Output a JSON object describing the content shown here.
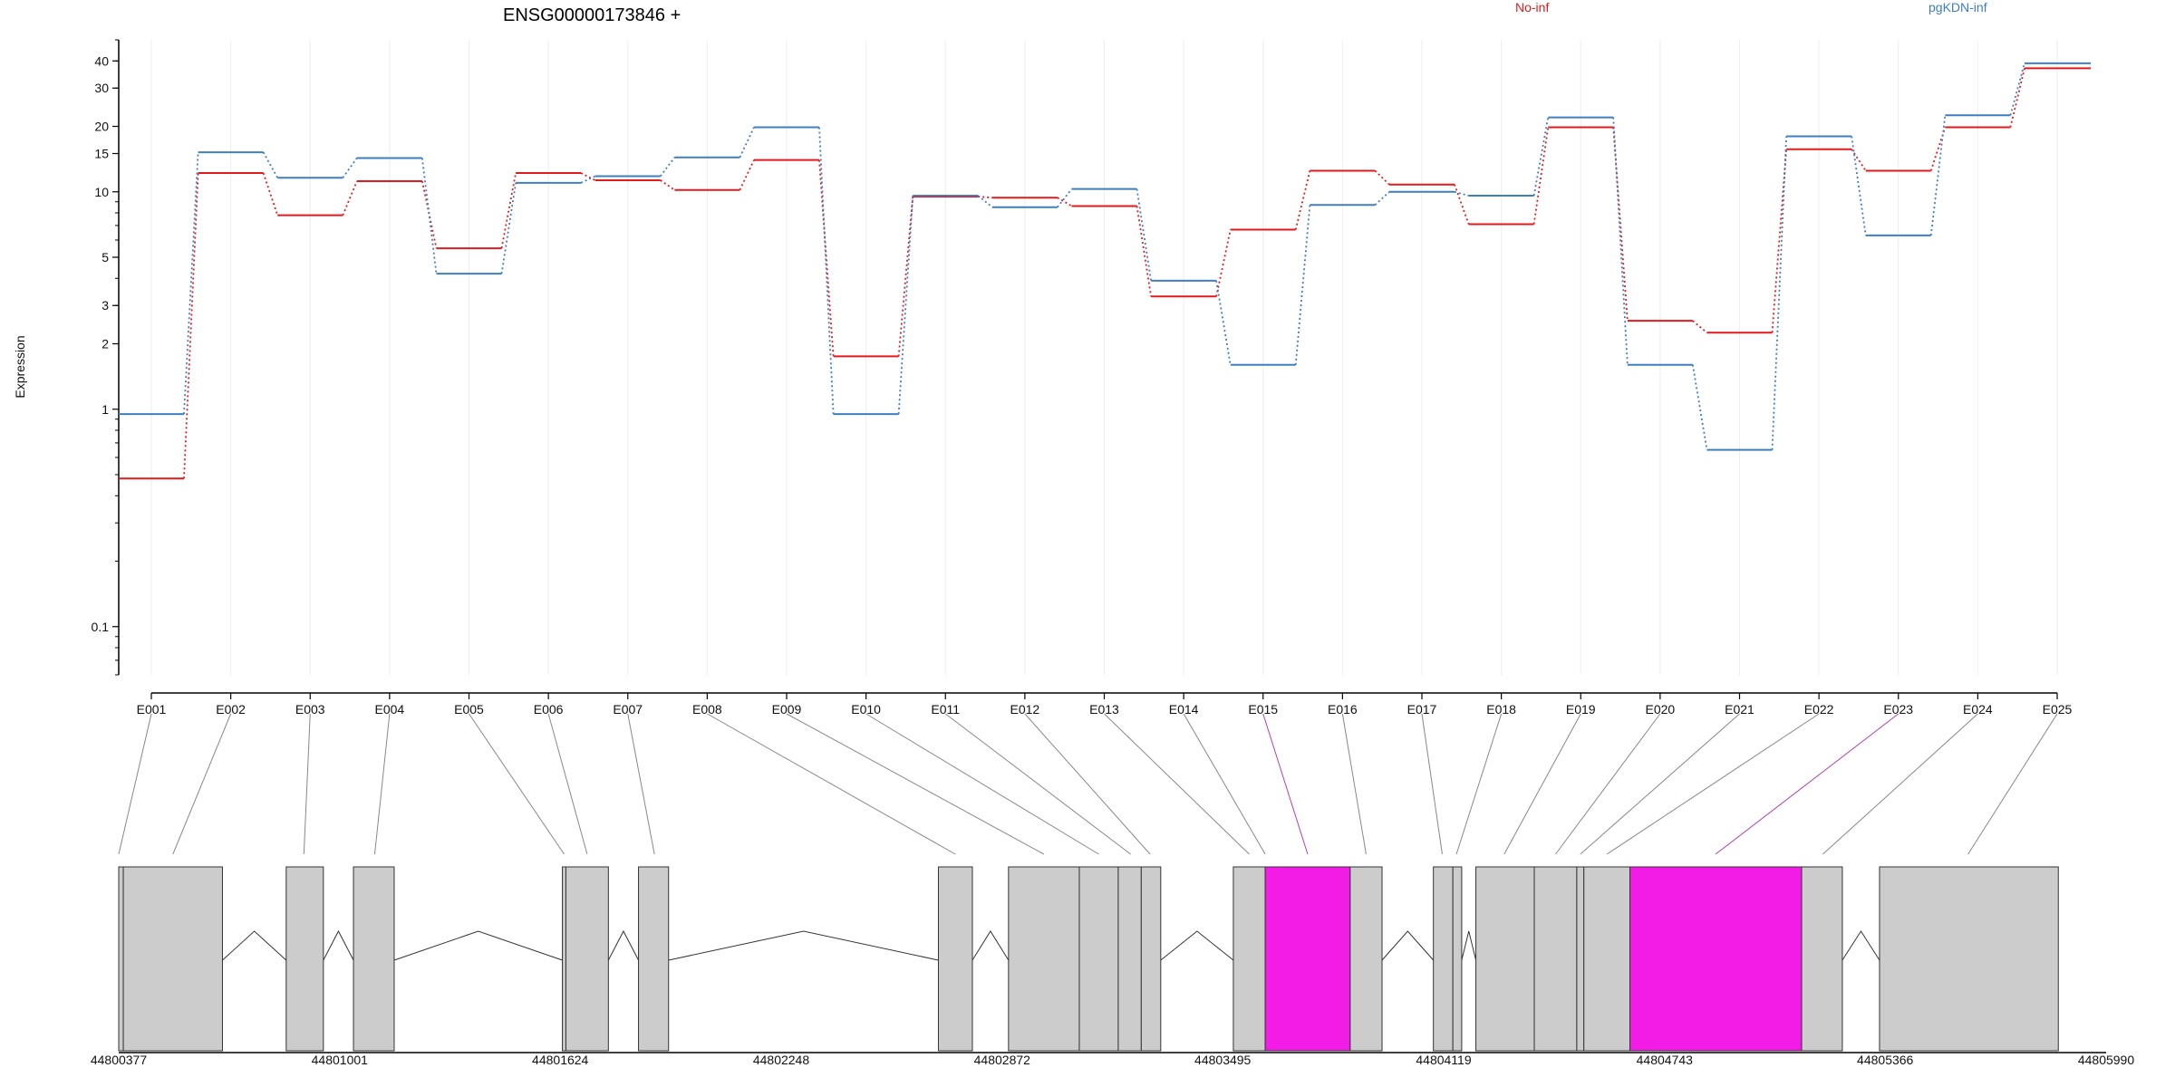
{
  "chart_data": {
    "type": "line",
    "title": "ENSG00000173846 +",
    "ylabel": "Expression",
    "yscale": "log",
    "ylim": [
      0.06,
      50
    ],
    "ytick_labels": [
      "0.1",
      "1",
      "2",
      "3",
      "5",
      "10",
      "15",
      "20",
      "30",
      "40"
    ],
    "categories": [
      "E001",
      "E002",
      "E003",
      "E004",
      "E005",
      "E006",
      "E007",
      "E008",
      "E009",
      "E010",
      "E011",
      "E012",
      "E013",
      "E014",
      "E015",
      "E016",
      "E017",
      "E018",
      "E019",
      "E020",
      "E021",
      "E022",
      "E023",
      "E024",
      "E025"
    ],
    "series": [
      {
        "name": "No-inf",
        "color": "#e31a1c",
        "values": [
          0.48,
          12.2,
          7.8,
          11.2,
          5.5,
          12.2,
          11.3,
          10.2,
          14.0,
          1.75,
          9.5,
          9.4,
          8.6,
          3.3,
          6.7,
          12.5,
          10.8,
          7.1,
          19.8,
          2.55,
          2.25,
          15.7,
          12.5,
          19.8,
          37.0
        ]
      },
      {
        "name": "pgKDN-inf",
        "color": "#3e7fc1",
        "values": [
          0.95,
          15.2,
          11.6,
          14.3,
          4.2,
          11.0,
          11.8,
          14.4,
          19.8,
          0.95,
          9.6,
          8.5,
          10.3,
          3.9,
          1.6,
          8.7,
          10.0,
          9.6,
          22.0,
          1.6,
          0.65,
          18.0,
          6.3,
          22.5,
          39.0
        ]
      }
    ],
    "legend_placement": "top",
    "grid": true,
    "genome_axis_labels": [
      "44800377",
      "44801001",
      "44801624",
      "44802248",
      "44802872",
      "44803495",
      "44804119",
      "44804743",
      "44805366",
      "44805990"
    ],
    "genome_range": [
      44800377,
      44805990
    ],
    "exons": [
      {
        "start": 44800377,
        "end": 44800390,
        "color": "#cccccc"
      },
      {
        "start": 44800390,
        "end": 44800670,
        "color": "#cccccc"
      },
      {
        "start": 44800850,
        "end": 44800955,
        "color": "#cccccc"
      },
      {
        "start": 44801040,
        "end": 44801155,
        "color": "#cccccc"
      },
      {
        "start": 44801630,
        "end": 44801640,
        "color": "#cccccc"
      },
      {
        "start": 44801640,
        "end": 44801760,
        "color": "#cccccc"
      },
      {
        "start": 44801845,
        "end": 44801930,
        "color": "#cccccc"
      },
      {
        "start": 44802692,
        "end": 44802788,
        "color": "#cccccc"
      },
      {
        "start": 44802890,
        "end": 44803090,
        "color": "#cccccc"
      },
      {
        "start": 44803090,
        "end": 44803200,
        "color": "#cccccc"
      },
      {
        "start": 44803200,
        "end": 44803265,
        "color": "#cccccc"
      },
      {
        "start": 44803265,
        "end": 44803320,
        "color": "#cccccc"
      },
      {
        "start": 44803525,
        "end": 44803615,
        "color": "#cccccc"
      },
      {
        "start": 44803615,
        "end": 44803855,
        "color": "#f21ce6"
      },
      {
        "start": 44803855,
        "end": 44803945,
        "color": "#cccccc"
      },
      {
        "start": 44804090,
        "end": 44804145,
        "color": "#cccccc"
      },
      {
        "start": 44804145,
        "end": 44804170,
        "color": "#cccccc"
      },
      {
        "start": 44804210,
        "end": 44804375,
        "color": "#cccccc"
      },
      {
        "start": 44804375,
        "end": 44804495,
        "color": "#cccccc"
      },
      {
        "start": 44804495,
        "end": 44804515,
        "color": "#cccccc"
      },
      {
        "start": 44804515,
        "end": 44804645,
        "color": "#cccccc"
      },
      {
        "start": 44804645,
        "end": 44805130,
        "color": "#f21ce6"
      },
      {
        "start": 44805130,
        "end": 44805245,
        "color": "#cccccc"
      },
      {
        "start": 44805350,
        "end": 44805855,
        "color": "#cccccc"
      }
    ],
    "exon_links": [
      {
        "label": "E001",
        "pos": 44800377,
        "color": "#888888"
      },
      {
        "label": "E002",
        "pos": 44800530,
        "color": "#888888"
      },
      {
        "label": "E003",
        "pos": 44800900,
        "color": "#888888"
      },
      {
        "label": "E004",
        "pos": 44801100,
        "color": "#888888"
      },
      {
        "label": "E005",
        "pos": 44801635,
        "color": "#888888"
      },
      {
        "label": "E006",
        "pos": 44801700,
        "color": "#888888"
      },
      {
        "label": "E007",
        "pos": 44801890,
        "color": "#888888"
      },
      {
        "label": "E008",
        "pos": 44802740,
        "color": "#888888"
      },
      {
        "label": "E009",
        "pos": 44802990,
        "color": "#888888"
      },
      {
        "label": "E010",
        "pos": 44803145,
        "color": "#888888"
      },
      {
        "label": "E011",
        "pos": 44803235,
        "color": "#888888"
      },
      {
        "label": "E012",
        "pos": 44803290,
        "color": "#888888"
      },
      {
        "label": "E013",
        "pos": 44803570,
        "color": "#888888"
      },
      {
        "label": "E014",
        "pos": 44803615,
        "color": "#888888"
      },
      {
        "label": "E015",
        "pos": 44803735,
        "color": "#b040b0"
      },
      {
        "label": "E016",
        "pos": 44803900,
        "color": "#888888"
      },
      {
        "label": "E017",
        "pos": 44804115,
        "color": "#888888"
      },
      {
        "label": "E018",
        "pos": 44804155,
        "color": "#888888"
      },
      {
        "label": "E019",
        "pos": 44804290,
        "color": "#888888"
      },
      {
        "label": "E020",
        "pos": 44804435,
        "color": "#888888"
      },
      {
        "label": "E021",
        "pos": 44804505,
        "color": "#888888"
      },
      {
        "label": "E022",
        "pos": 44804580,
        "color": "#888888"
      },
      {
        "label": "E023",
        "pos": 44804887,
        "color": "#b040b0"
      },
      {
        "label": "E024",
        "pos": 44805190,
        "color": "#888888"
      },
      {
        "label": "E025",
        "pos": 44805600,
        "color": "#888888"
      }
    ]
  }
}
